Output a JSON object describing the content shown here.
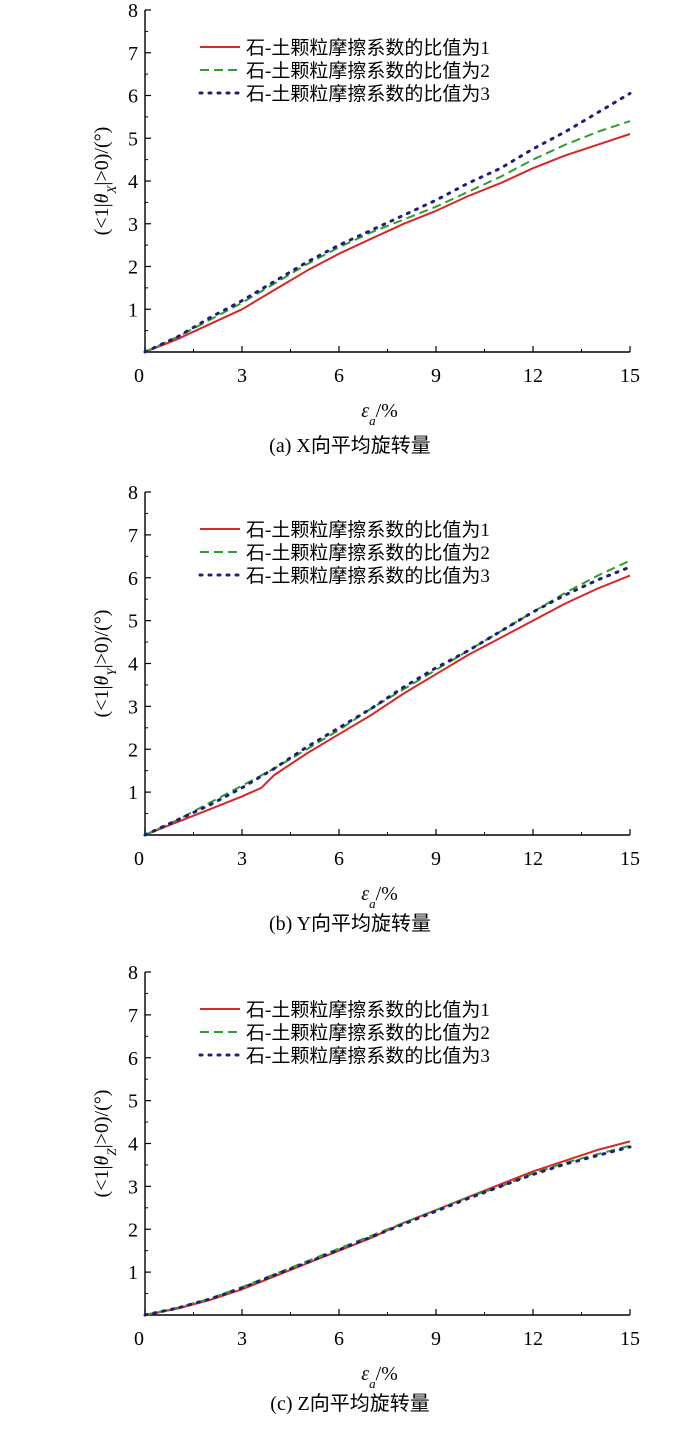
{
  "chart_data": [
    {
      "type": "line",
      "caption": "(a) X向平均旋转量",
      "xlabel": "εa/%",
      "ylabel": "(<1|θX|>0)/(°)",
      "xlim": [
        0,
        15
      ],
      "ylim": [
        0,
        8
      ],
      "xticks": [
        "0",
        "3",
        "6",
        "9",
        "12",
        "15"
      ],
      "yticks": [
        "1",
        "2",
        "3",
        "4",
        "5",
        "6",
        "7",
        "8"
      ],
      "legend_position": "top",
      "series": [
        {
          "name": "石-土颗粒摩擦系数的比值为1",
          "color": "#d62728",
          "style": "solid",
          "x": [
            0,
            1,
            2,
            3,
            4,
            5,
            6,
            7,
            8,
            9,
            10,
            11,
            12,
            13,
            14,
            15
          ],
          "y": [
            0,
            0.3,
            0.65,
            1.0,
            1.45,
            1.9,
            2.3,
            2.65,
            3.0,
            3.3,
            3.65,
            3.95,
            4.3,
            4.6,
            4.85,
            5.1
          ]
        },
        {
          "name": "石-土颗粒摩擦系数的比值为2",
          "color": "#2ca02c",
          "style": "dashed",
          "x": [
            0,
            1,
            2,
            3,
            4,
            5,
            6,
            7,
            8,
            9,
            10,
            11,
            12,
            13,
            14,
            15
          ],
          "y": [
            0,
            0.35,
            0.75,
            1.15,
            1.6,
            2.05,
            2.45,
            2.8,
            3.1,
            3.4,
            3.75,
            4.1,
            4.5,
            4.85,
            5.15,
            5.4
          ]
        },
        {
          "name": "石-土颗粒摩擦系数的比值为3",
          "color": "#1f1f7a",
          "style": "dotted",
          "x": [
            0,
            1,
            2,
            3,
            4,
            5,
            6,
            7,
            8,
            9,
            10,
            11,
            12,
            13,
            14,
            15
          ],
          "y": [
            0,
            0.35,
            0.8,
            1.2,
            1.65,
            2.1,
            2.5,
            2.85,
            3.2,
            3.55,
            3.95,
            4.3,
            4.75,
            5.15,
            5.6,
            6.05
          ]
        }
      ]
    },
    {
      "type": "line",
      "caption": "(b) Y向平均旋转量",
      "xlabel": "εa/%",
      "ylabel": "(<1|θY|>0)/(°)",
      "xlim": [
        0,
        15
      ],
      "ylim": [
        0,
        8
      ],
      "xticks": [
        "0",
        "3",
        "6",
        "9",
        "12",
        "15"
      ],
      "yticks": [
        "1",
        "2",
        "3",
        "4",
        "5",
        "6",
        "7",
        "8"
      ],
      "legend_position": "top",
      "series": [
        {
          "name": "石-土颗粒摩擦系数的比值为1",
          "color": "#d62728",
          "style": "solid",
          "x": [
            0,
            1,
            2,
            3,
            3.6,
            4,
            5,
            6,
            7,
            8,
            9,
            10,
            11,
            12,
            13,
            14,
            15
          ],
          "y": [
            0,
            0.3,
            0.6,
            0.9,
            1.1,
            1.4,
            1.9,
            2.35,
            2.8,
            3.3,
            3.75,
            4.2,
            4.6,
            5.0,
            5.4,
            5.75,
            6.05
          ]
        },
        {
          "name": "石-土颗粒摩擦系数的比值为2",
          "color": "#2ca02c",
          "style": "dashed",
          "x": [
            0,
            1,
            2,
            3,
            4,
            5,
            6,
            7,
            8,
            9,
            10,
            11,
            12,
            13,
            14,
            15
          ],
          "y": [
            0,
            0.35,
            0.75,
            1.15,
            1.55,
            2.0,
            2.45,
            2.95,
            3.4,
            3.85,
            4.3,
            4.75,
            5.2,
            5.65,
            6.05,
            6.4
          ]
        },
        {
          "name": "石-土颗粒摩擦系数的比值为3",
          "color": "#1f1f7a",
          "style": "dotted",
          "x": [
            0,
            1,
            2,
            3,
            4,
            5,
            6,
            7,
            8,
            9,
            10,
            11,
            12,
            13,
            14,
            15
          ],
          "y": [
            0,
            0.35,
            0.7,
            1.1,
            1.55,
            2.05,
            2.5,
            2.95,
            3.45,
            3.9,
            4.3,
            4.75,
            5.2,
            5.6,
            5.95,
            6.25
          ]
        }
      ]
    },
    {
      "type": "line",
      "caption": "(c) Z向平均旋转量",
      "xlabel": "εa/%",
      "ylabel": "(<1|θZ|>0)/(°)",
      "xlim": [
        0,
        15
      ],
      "ylim": [
        0,
        8
      ],
      "xticks": [
        "0",
        "3",
        "6",
        "9",
        "12",
        "15"
      ],
      "yticks": [
        "1",
        "2",
        "3",
        "4",
        "5",
        "6",
        "7",
        "8"
      ],
      "legend_position": "top",
      "series": [
        {
          "name": "石-土颗粒摩擦系数的比值为1",
          "color": "#d62728",
          "style": "solid",
          "x": [
            0,
            1,
            2,
            3,
            4,
            5,
            6,
            7,
            8,
            9,
            10,
            11,
            12,
            13,
            14,
            15
          ],
          "y": [
            0,
            0.15,
            0.35,
            0.6,
            0.9,
            1.2,
            1.5,
            1.8,
            2.15,
            2.45,
            2.75,
            3.05,
            3.35,
            3.6,
            3.85,
            4.05
          ]
        },
        {
          "name": "石-土颗粒摩擦系数的比值为2",
          "color": "#2ca02c",
          "style": "dashed",
          "x": [
            0,
            1,
            2,
            3,
            4,
            5,
            6,
            7,
            8,
            9,
            10,
            11,
            12,
            13,
            14,
            15
          ],
          "y": [
            0,
            0.17,
            0.38,
            0.65,
            0.95,
            1.25,
            1.55,
            1.85,
            2.15,
            2.45,
            2.75,
            3.0,
            3.3,
            3.55,
            3.75,
            3.95
          ]
        },
        {
          "name": "石-土颗粒摩擦系数的比值为3",
          "color": "#1f1f7a",
          "style": "dotted",
          "x": [
            0,
            1,
            2,
            3,
            4,
            5,
            6,
            7,
            8,
            9,
            10,
            11,
            12,
            13,
            14,
            15
          ],
          "y": [
            0,
            0.16,
            0.37,
            0.63,
            0.93,
            1.22,
            1.52,
            1.82,
            2.12,
            2.42,
            2.72,
            3.0,
            3.28,
            3.52,
            3.72,
            3.92
          ]
        }
      ]
    }
  ]
}
